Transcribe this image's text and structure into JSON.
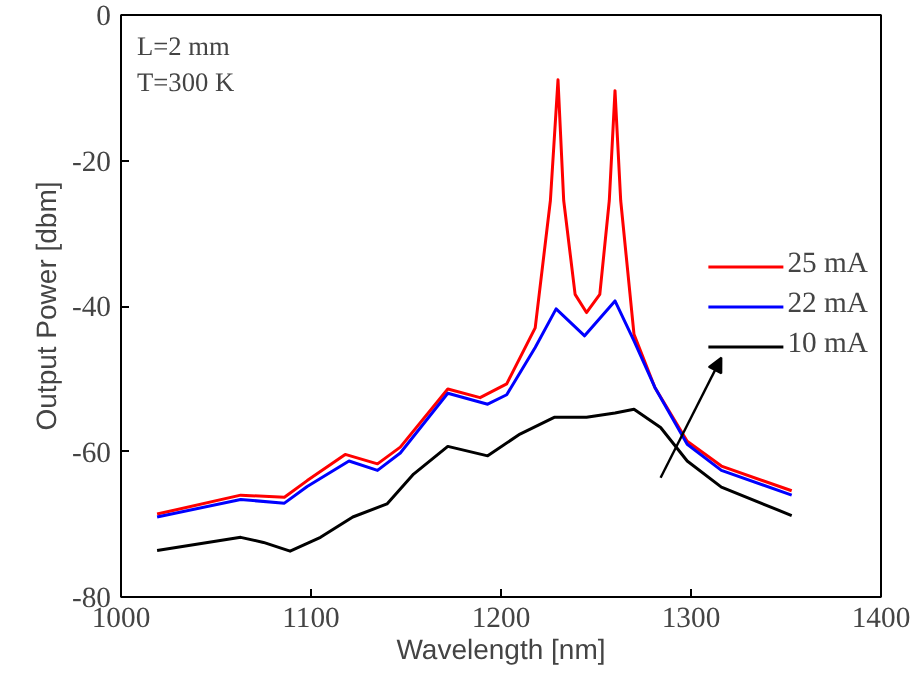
{
  "chart_data": {
    "type": "line",
    "xlabel": "Wavelength [nm]",
    "ylabel": "Output Power [dbm]",
    "xlim": [
      1000,
      1400
    ],
    "ylim": [
      -80,
      0
    ],
    "xticks": [
      1000,
      1100,
      1200,
      1300,
      1400
    ],
    "yticks": [
      -80,
      -60,
      -40,
      -20,
      0
    ],
    "grid": false,
    "legend": "right",
    "marker": "none",
    "line_style": "solid",
    "annotations": [
      "L=2 mm",
      "T=300 K"
    ],
    "series": [
      {
        "name": "25 mA",
        "color": "#ff0000",
        "x": [
          1019,
          1063,
          1086,
          1098,
          1118,
          1135,
          1147,
          1172,
          1189,
          1203,
          1218,
          1226,
          1230,
          1233,
          1239,
          1245,
          1252,
          1257,
          1260,
          1263,
          1270,
          1281,
          1298,
          1316,
          1353
        ],
        "values": [
          -68.6,
          -66.0,
          -66.3,
          -64.0,
          -60.4,
          -61.7,
          -59.4,
          -51.4,
          -52.6,
          -50.7,
          -43.0,
          -25.5,
          -8.9,
          -25.5,
          -38.4,
          -40.9,
          -38.4,
          -25.5,
          -10.4,
          -25.5,
          -43.9,
          -51.2,
          -58.6,
          -62.0,
          -65.4
        ]
      },
      {
        "name": "22 mA",
        "color": "#0000ff",
        "x": [
          1019,
          1063,
          1086,
          1098,
          1120,
          1135,
          1147,
          1172,
          1193,
          1203,
          1218,
          1229,
          1244,
          1260,
          1270,
          1281,
          1298,
          1316,
          1353
        ],
        "values": [
          -69.0,
          -66.6,
          -67.1,
          -64.8,
          -61.3,
          -62.6,
          -60.2,
          -52.0,
          -53.5,
          -52.2,
          -45.7,
          -40.4,
          -44.1,
          -39.3,
          -44.8,
          -51.2,
          -59.0,
          -62.6,
          -66.0
        ]
      },
      {
        "name": "10 mA",
        "color": "#000000",
        "x": [
          1019,
          1063,
          1075,
          1089,
          1105,
          1122,
          1140,
          1154,
          1172,
          1193,
          1210,
          1228,
          1245,
          1260,
          1270,
          1284,
          1298,
          1316,
          1353
        ],
        "values": [
          -73.6,
          -71.8,
          -72.5,
          -73.7,
          -71.8,
          -69.0,
          -67.2,
          -63.1,
          -59.3,
          -60.6,
          -57.6,
          -55.3,
          -55.3,
          -54.7,
          -54.2,
          -56.7,
          -61.3,
          -64.9,
          -68.8
        ]
      }
    ]
  }
}
